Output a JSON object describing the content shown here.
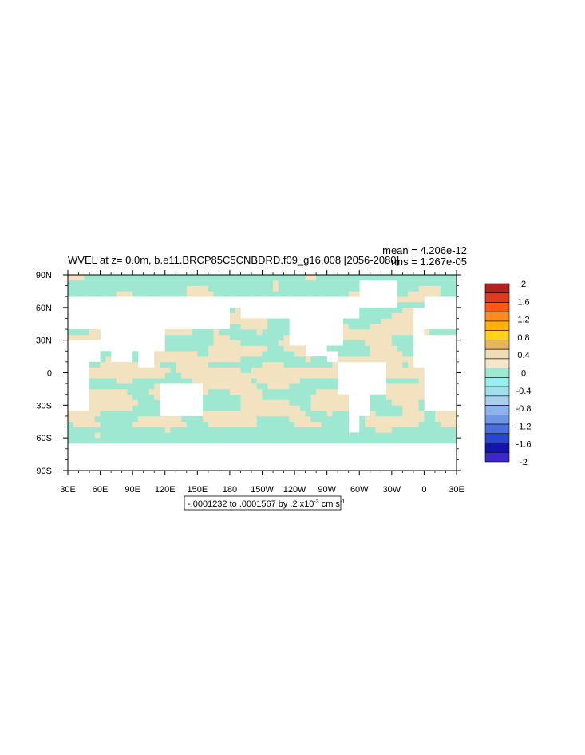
{
  "chart_data": {
    "type": "heatmap",
    "title": "WVEL at z=   0.0m, b.e11.BRCP85C5CNBDRD.f09_g16.008 [2056-2080]",
    "stats": {
      "mean": "mean = 4.206e-12",
      "rms": "rms = 1.267e-05"
    },
    "range_label_main": "-.0001232 to .0001567 by .2 x10",
    "range_label_exp": "-3",
    "range_label_unit": " cm s",
    "range_label_unit_exp": "-1",
    "x_ticks": [
      "30E",
      "60E",
      "90E",
      "120E",
      "150E",
      "180",
      "150W",
      "120W",
      "90W",
      "60W",
      "30W",
      "0",
      "30E"
    ],
    "y_ticks": [
      "90N",
      "60N",
      "30N",
      "0",
      "30S",
      "60S",
      "90S"
    ],
    "xlim": [
      30,
      390
    ],
    "ylim": [
      -90,
      90
    ],
    "colorbar": {
      "labels": [
        "2",
        "1.6",
        "1.2",
        "0.8",
        "0.4",
        "0",
        "-0.4",
        "-0.8",
        "-1.2",
        "-1.6",
        "-2"
      ],
      "colors": [
        "#b22222",
        "#e03c1a",
        "#ff5a14",
        "#ff8c1a",
        "#ffb400",
        "#ffd21e",
        "#e6b464",
        "#f0dcb4",
        "#f5e6c8",
        "#9fe8d2",
        "#96f0f0",
        "#a0e0ea",
        "#a8d0ea",
        "#8cb4ea",
        "#6e96e6",
        "#4a6ee0",
        "#2846d2",
        "#1414b4",
        "#3c28c8"
      ]
    },
    "field_colors": {
      "positive": "#f2e2c0",
      "negative": "#9ee8d2"
    }
  }
}
